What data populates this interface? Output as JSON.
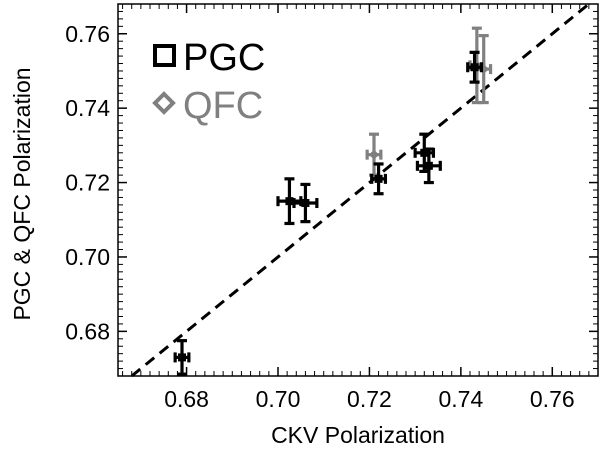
{
  "chart_data": {
    "type": "scatter",
    "xlabel": "CKV Polarization",
    "ylabel": "PGC & QFC Polarization",
    "xlim": [
      0.665,
      0.77
    ],
    "ylim": [
      0.668,
      0.768
    ],
    "x_ticks": [
      "0.68",
      "0.70",
      "0.72",
      "0.74",
      "0.76"
    ],
    "y_ticks": [
      "0.68",
      "0.70",
      "0.72",
      "0.74",
      "0.76"
    ],
    "x_tick_values": [
      0.68,
      0.7,
      0.72,
      0.74,
      0.76
    ],
    "y_tick_values": [
      0.68,
      0.7,
      0.72,
      0.74,
      0.76
    ],
    "reference_line": {
      "style": "dashed",
      "from": [
        0.665,
        0.665
      ],
      "to": [
        0.77,
        0.77
      ]
    },
    "legend_position": "top-left",
    "series": [
      {
        "name": "PGC",
        "marker": "square",
        "color": "#000000",
        "points": [
          {
            "x": 0.679,
            "y": 0.673,
            "xerr": 0.0015,
            "yerr": 0.0045
          },
          {
            "x": 0.7025,
            "y": 0.715,
            "xerr": 0.0025,
            "yerr": 0.006
          },
          {
            "x": 0.706,
            "y": 0.7145,
            "xerr": 0.0025,
            "yerr": 0.005
          },
          {
            "x": 0.722,
            "y": 0.721,
            "xerr": 0.0015,
            "yerr": 0.004
          },
          {
            "x": 0.732,
            "y": 0.728,
            "xerr": 0.002,
            "yerr": 0.005
          },
          {
            "x": 0.733,
            "y": 0.7245,
            "xerr": 0.0025,
            "yerr": 0.0045
          },
          {
            "x": 0.743,
            "y": 0.751,
            "xerr": 0.0015,
            "yerr": 0.004
          }
        ]
      },
      {
        "name": "QFC",
        "marker": "diamond",
        "color": "#808080",
        "points": [
          {
            "x": 0.721,
            "y": 0.7275,
            "xerr": 0.0015,
            "yerr": 0.0055
          },
          {
            "x": 0.7435,
            "y": 0.7515,
            "xerr": 0.0015,
            "yerr": 0.01
          },
          {
            "x": 0.745,
            "y": 0.7505,
            "xerr": 0.0015,
            "yerr": 0.009
          }
        ]
      }
    ]
  }
}
